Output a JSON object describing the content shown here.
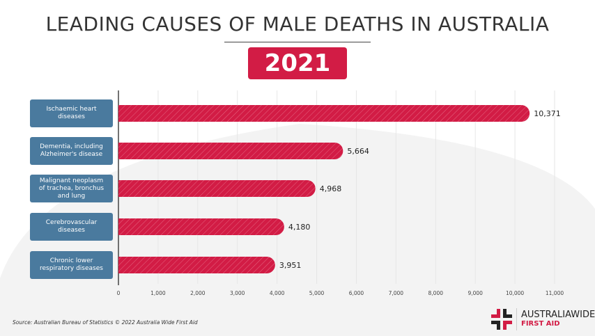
{
  "chart_data": {
    "type": "bar",
    "orientation": "horizontal",
    "title": "LEADING CAUSES OF MALE DEATHS IN AUSTRALIA",
    "subtitle": "2021",
    "categories": [
      "Ischaemic heart diseases",
      "Dementia, including Alzheimer's disease",
      "Malignant neoplasm of trachea, bronchus and lung",
      "Cerebrovascular diseases",
      "Chronic lower respiratory diseases"
    ],
    "values": [
      10371,
      5664,
      4968,
      4180,
      3951
    ],
    "data_labels": [
      "10,371",
      "5,664",
      "4,968",
      "4,180",
      "3,951"
    ],
    "xlim": [
      0,
      11000
    ],
    "xticks": [
      "0",
      "1,000",
      "2,000",
      "3,000",
      "4,000",
      "5,000",
      "6,000",
      "7,000",
      "8,000",
      "9,000",
      "10,000",
      "11,000"
    ],
    "grid": true,
    "bar_color": "#d21c45",
    "label_color": "#4a7a9e"
  },
  "source": "Source: Australian Bureau of Statistics © 2022 Australia Wide First Aid",
  "logo": {
    "line1": "AUSTRALIAWIDE",
    "line2": "FIRST AID"
  }
}
